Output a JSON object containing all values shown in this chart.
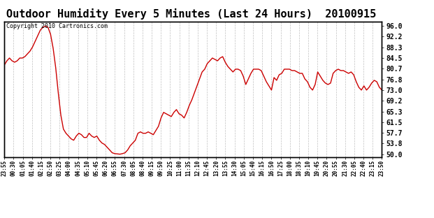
{
  "title": "Outdoor Humidity Every 5 Minutes (Last 24 Hours)  20100915",
  "copyright": "Copyright 2010 Cartronics.com",
  "yticks": [
    50.0,
    53.8,
    57.7,
    61.5,
    65.3,
    69.2,
    73.0,
    76.8,
    80.7,
    84.5,
    88.3,
    92.2,
    96.0
  ],
  "ymin": 49.0,
  "ymax": 97.5,
  "line_color": "#cc0000",
  "bg_color": "#ffffff",
  "grid_color": "#c0c0c0",
  "title_fontsize": 11,
  "xtick_labels": [
    "23:55",
    "00:30",
    "01:05",
    "01:40",
    "02:15",
    "02:50",
    "03:25",
    "04:00",
    "04:35",
    "05:10",
    "05:45",
    "06:20",
    "06:55",
    "07:30",
    "08:05",
    "08:40",
    "09:15",
    "09:50",
    "10:25",
    "11:00",
    "11:35",
    "12:10",
    "12:45",
    "13:20",
    "13:55",
    "14:30",
    "15:05",
    "15:40",
    "16:15",
    "16:50",
    "17:25",
    "18:00",
    "18:35",
    "19:10",
    "19:45",
    "20:20",
    "20:55",
    "21:30",
    "22:05",
    "22:40",
    "23:15",
    "23:50"
  ],
  "humidity_values": [
    82.0,
    83.5,
    84.5,
    83.5,
    83.0,
    83.5,
    84.5,
    84.5,
    85.0,
    86.0,
    87.0,
    88.5,
    90.5,
    92.5,
    94.5,
    95.5,
    96.0,
    95.5,
    93.0,
    88.0,
    81.0,
    72.0,
    64.0,
    59.0,
    57.5,
    56.5,
    55.5,
    55.0,
    56.5,
    57.5,
    57.0,
    56.0,
    56.0,
    57.5,
    56.5,
    56.0,
    56.5,
    55.0,
    54.0,
    53.5,
    52.5,
    51.5,
    50.5,
    50.2,
    50.1,
    50.0,
    50.2,
    50.5,
    51.5,
    53.0,
    54.0,
    55.0,
    57.5,
    58.0,
    57.5,
    57.5,
    58.0,
    57.5,
    57.0,
    58.5,
    60.0,
    63.0,
    65.0,
    64.5,
    64.0,
    63.5,
    65.0,
    66.0,
    64.5,
    64.0,
    63.0,
    65.0,
    67.5,
    69.5,
    72.0,
    74.5,
    77.0,
    79.5,
    80.5,
    82.5,
    83.5,
    84.5,
    84.0,
    83.5,
    84.5,
    85.0,
    83.0,
    81.5,
    80.5,
    79.5,
    80.5,
    80.5,
    80.0,
    78.0,
    75.0,
    77.0,
    79.0,
    80.5,
    80.5,
    80.5,
    80.0,
    78.0,
    76.0,
    74.5,
    73.0,
    77.5,
    76.5,
    78.5,
    79.0,
    80.5,
    80.5,
    80.5,
    80.0,
    80.0,
    79.5,
    79.0,
    79.0,
    77.0,
    76.0,
    74.0,
    73.0,
    75.0,
    79.5,
    78.0,
    76.5,
    75.5,
    75.0,
    75.5,
    79.0,
    80.0,
    80.5,
    80.0,
    80.0,
    79.5,
    79.0,
    79.5,
    78.5,
    76.0,
    74.0,
    73.0,
    74.5,
    73.0,
    74.0,
    75.5,
    76.5,
    76.0,
    74.0,
    73.0
  ]
}
